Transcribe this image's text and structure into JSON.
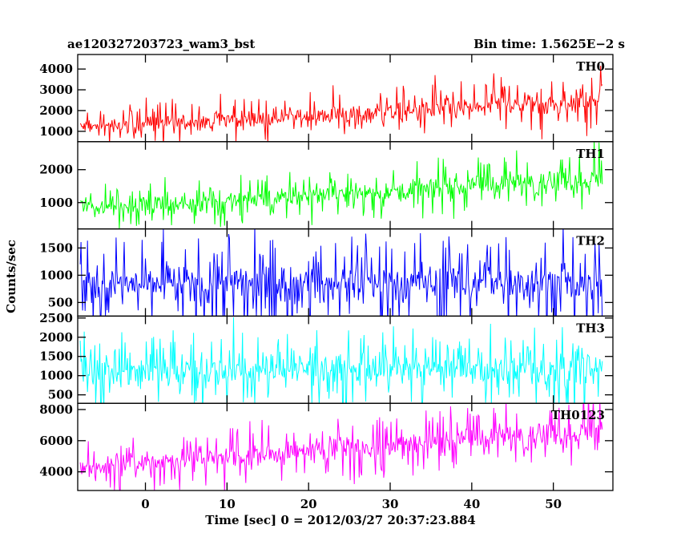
{
  "header": {
    "left": "ae120327203723_wam3_bst",
    "right": "Bin time: 1.5625E−2 s"
  },
  "chart_data": {
    "type": "line",
    "xlabel": "Time [sec] 0 = 2012/03/27 20:37:23.884",
    "ylabel": "Counts/sec",
    "xlim": [
      -8.3,
      57.3
    ],
    "x_ticks": [
      0,
      10,
      20,
      30,
      40,
      50
    ],
    "x_tick_labels": [
      "0",
      "10",
      "20",
      "30",
      "40",
      "50"
    ],
    "data_x_range": [
      -8,
      56
    ],
    "sample_step": 0.1,
    "grid": false,
    "panels": [
      {
        "name": "TH0",
        "color": "#ff0000",
        "ylim": [
          500,
          4700
        ],
        "y_ticks": [
          1000,
          2000,
          3000,
          4000
        ],
        "y_tick_labels": [
          "1000",
          "2000",
          "3000",
          "4000"
        ],
        "trend": {
          "start": 1200,
          "end": 2450
        },
        "spread": {
          "start": 450,
          "end": 700
        },
        "spikes": 0.22
      },
      {
        "name": "TH1",
        "color": "#00ff00",
        "ylim": [
          200,
          2850
        ],
        "y_ticks": [
          1000,
          2000
        ],
        "y_tick_labels": [
          "1000",
          "2000"
        ],
        "trend": {
          "start": 800,
          "end": 1750
        },
        "spread": {
          "start": 320,
          "end": 470
        },
        "spikes": 0.22
      },
      {
        "name": "TH2",
        "color": "#0000ff",
        "ylim": [
          250,
          1850
        ],
        "y_ticks": [
          500,
          1000,
          1500
        ],
        "y_tick_labels": [
          "500",
          "1000",
          "1500"
        ],
        "trend": {
          "start": 850,
          "end": 850
        },
        "spread": {
          "start": 430,
          "end": 430
        },
        "spikes": 0.25
      },
      {
        "name": "TH3",
        "color": "#00ffff",
        "ylim": [
          280,
          2550
        ],
        "y_ticks": [
          500,
          1000,
          1500,
          2000,
          2500
        ],
        "y_tick_labels": [
          "500",
          "1000",
          "1500",
          "2000",
          "2500"
        ],
        "trend": {
          "start": 1150,
          "end": 1150
        },
        "spread": {
          "start": 520,
          "end": 520
        },
        "spikes": 0.25
      },
      {
        "name": "TH0123",
        "color": "#ff00ff",
        "ylim": [
          2800,
          8400
        ],
        "y_ticks": [
          4000,
          6000,
          8000
        ],
        "y_tick_labels": [
          "4000",
          "6000",
          "8000"
        ],
        "trend": {
          "start": 4300,
          "end": 6700
        },
        "spread": {
          "start": 850,
          "end": 1100
        },
        "spikes": 0.22
      }
    ]
  }
}
